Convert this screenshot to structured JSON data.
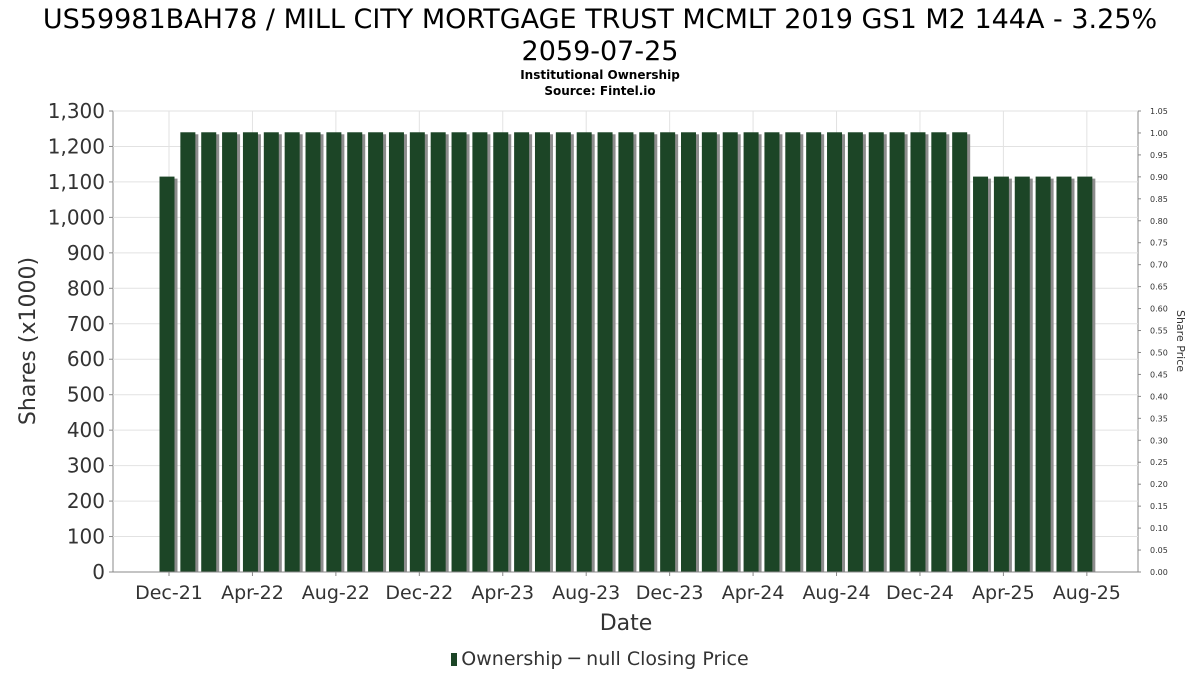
{
  "chart_data": {
    "type": "bar",
    "title": "US59981BAH78 / MILL CITY MORTGAGE TRUST MCMLT 2019 GS1 M2 144A - 3.25% 2059-07-25",
    "subtitle": "Institutional Ownership",
    "source": "Source: Fintel.io",
    "xlabel": "Date",
    "ylabel": "Shares (x1000)",
    "y2label": "Share Price",
    "ylim": [
      0,
      1300
    ],
    "y2lim": [
      0,
      1.05
    ],
    "yticks": [
      "0",
      "100",
      "200",
      "300",
      "400",
      "500",
      "600",
      "700",
      "800",
      "900",
      "1,000",
      "1,100",
      "1,200",
      "1,300"
    ],
    "y2ticks": [
      "0.00",
      "0.05",
      "0.10",
      "0.15",
      "0.20",
      "0.25",
      "0.30",
      "0.35",
      "0.40",
      "0.45",
      "0.50",
      "0.55",
      "0.60",
      "0.65",
      "0.70",
      "0.75",
      "0.80",
      "0.85",
      "0.90",
      "0.95",
      "1.00",
      "1.05"
    ],
    "xticks": [
      "Dec-21",
      "Apr-22",
      "Aug-22",
      "Dec-22",
      "Apr-23",
      "Aug-23",
      "Dec-23",
      "Apr-24",
      "Aug-24",
      "Dec-24",
      "Apr-25",
      "Aug-25"
    ],
    "grid": true,
    "legend_position": "bottom",
    "series": [
      {
        "name": "Ownership",
        "color": "#1c4526",
        "start": "Dec-21",
        "values": [
          1115,
          1240,
          1240,
          1240,
          1240,
          1240,
          1240,
          1240,
          1240,
          1240,
          1240,
          1240,
          1240,
          1240,
          1240,
          1240,
          1240,
          1240,
          1240,
          1240,
          1240,
          1240,
          1240,
          1240,
          1240,
          1240,
          1240,
          1240,
          1240,
          1240,
          1240,
          1240,
          1240,
          1240,
          1240,
          1240,
          1240,
          1240,
          1240,
          1115,
          1115,
          1115,
          1115,
          1115,
          1115
        ]
      },
      {
        "name": "null Closing Price",
        "values": []
      }
    ]
  }
}
